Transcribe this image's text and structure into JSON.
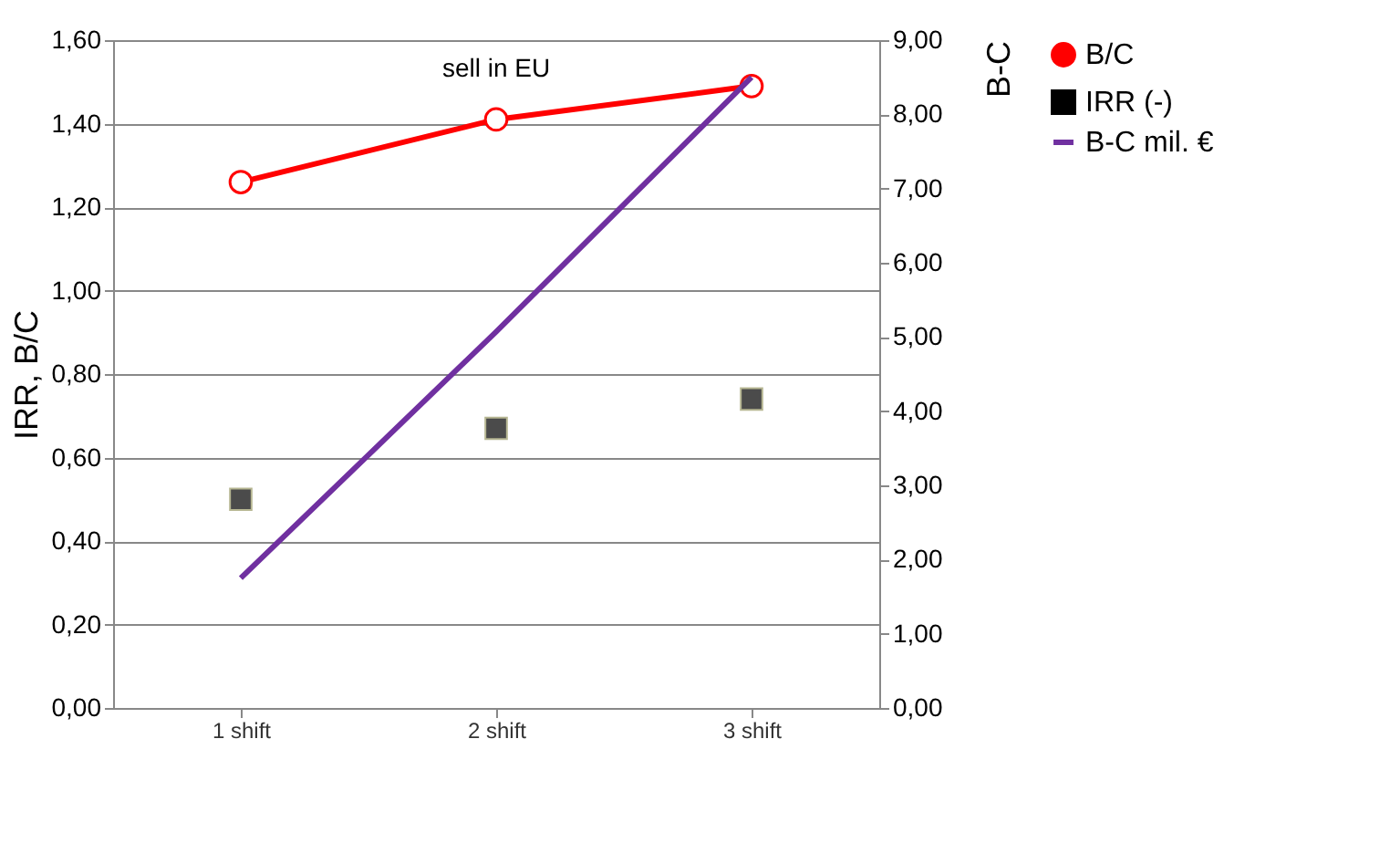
{
  "chart_data": {
    "type": "line",
    "categories": [
      "1 shift",
      "2 shift",
      "3 shift"
    ],
    "series": [
      {
        "name": "B/C",
        "color": "#ff0000",
        "values": [
          1.26,
          1.41,
          1.49
        ],
        "line_style": "solid",
        "marker": "circle"
      },
      {
        "name": "IRR (-)",
        "color": "#000000",
        "values": [
          0.5,
          0.67,
          0.74
        ],
        "type": "scatter",
        "marker": "square"
      },
      {
        "name": "B-C mil. €",
        "color": "#7030a0",
        "values": [
          1.75,
          5.07,
          8.5
        ],
        "line_style": "solid",
        "marker": "none",
        "axis": "y2"
      }
    ],
    "ylabel": "IRR,  B/C",
    "y2label": "B-C",
    "ylim": [
      0,
      1.6
    ],
    "yticks": [
      {
        "value": 0,
        "label": "0,00"
      },
      {
        "value": 0.2,
        "label": "0,20"
      },
      {
        "value": 0.4,
        "label": "0,40"
      },
      {
        "value": 0.6,
        "label": "0,60"
      },
      {
        "value": 0.8,
        "label": "0,80"
      },
      {
        "value": 1.0,
        "label": "1,00"
      },
      {
        "value": 1.2,
        "label": "1,20"
      },
      {
        "value": 1.4,
        "label": "1,40"
      },
      {
        "value": 1.6,
        "label": "1,60"
      }
    ],
    "y2lim": [
      0,
      9
    ],
    "y2ticks": [
      {
        "value": 0,
        "label": "0,00"
      },
      {
        "value": 1,
        "label": "1,00"
      },
      {
        "value": 2,
        "label": "2,00"
      },
      {
        "value": 3,
        "label": "3,00"
      },
      {
        "value": 4,
        "label": "4,00"
      },
      {
        "value": 5,
        "label": "5,00"
      },
      {
        "value": 6,
        "label": "6,00"
      },
      {
        "value": 7,
        "label": "7,00"
      },
      {
        "value": 8,
        "label": "8,00"
      },
      {
        "value": 9,
        "label": "9,00"
      }
    ],
    "annotations": [
      "sell in EU"
    ],
    "grid": "y",
    "legend": "right"
  }
}
